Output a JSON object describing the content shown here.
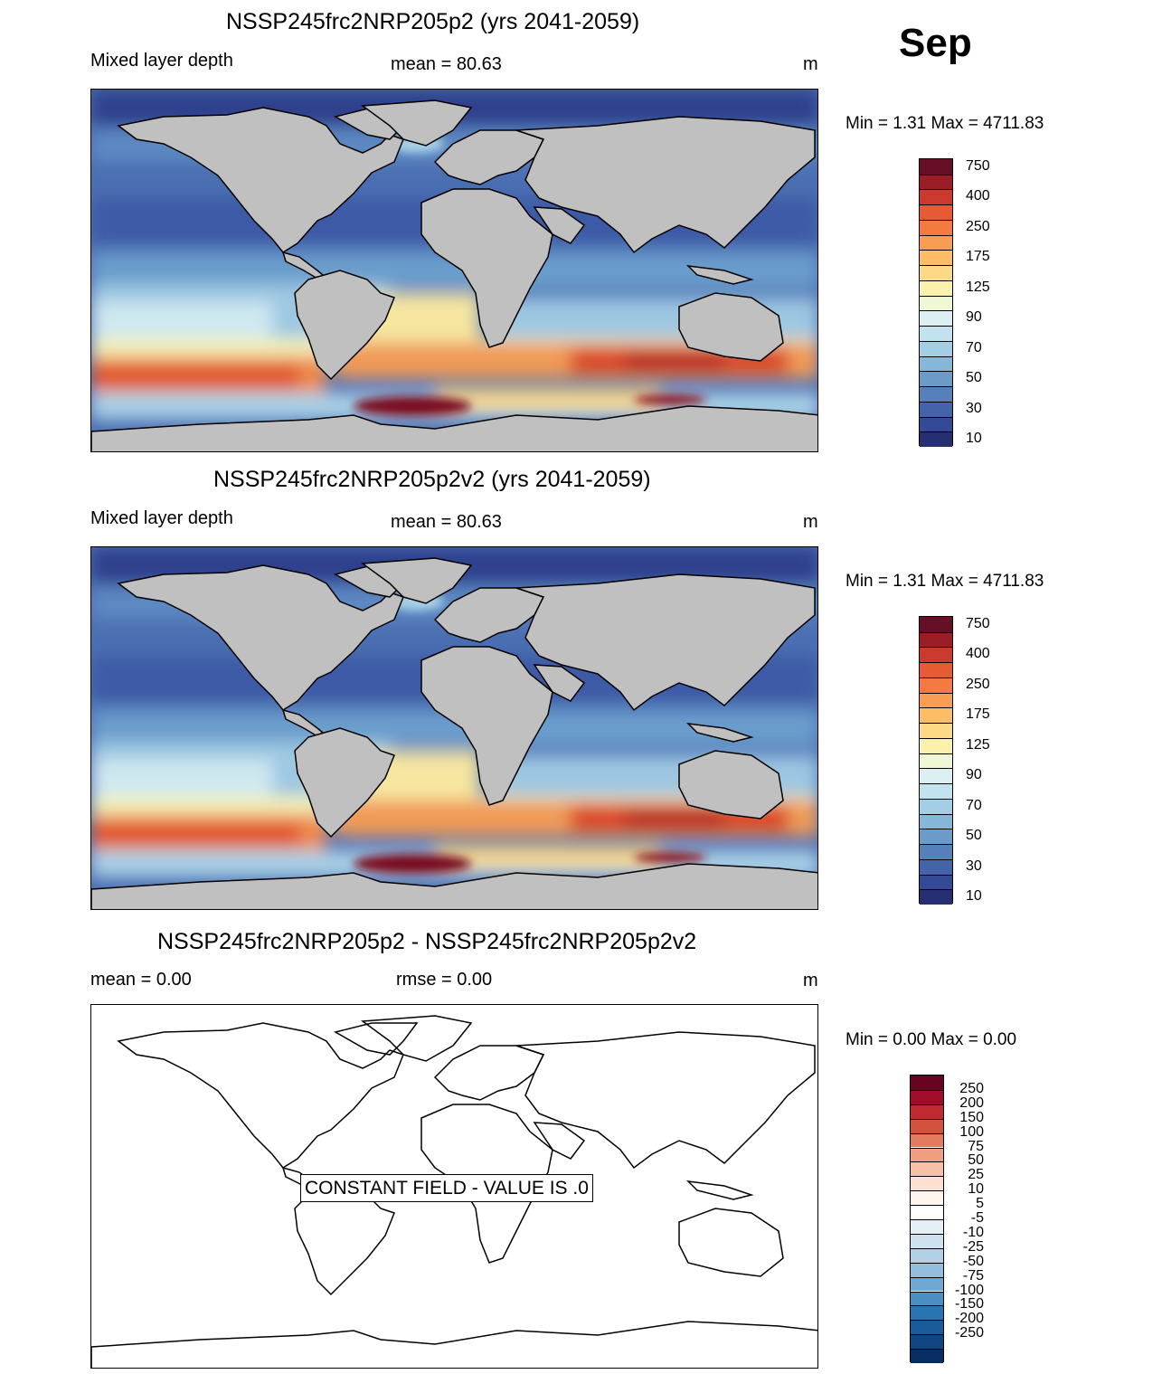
{
  "month": "Sep",
  "panels": [
    {
      "title": "NSSP245frc2NRP205p2 (yrs 2041-2059)",
      "left_label": "Mixed layer depth",
      "center_label": "mean =  80.63",
      "units": "m",
      "minmax": "Min =    1.31 Max = 4711.83"
    },
    {
      "title": "NSSP245frc2NRP205p2v2 (yrs 2041-2059)",
      "left_label": "Mixed layer depth",
      "center_label": "mean =  80.63",
      "units": "m",
      "minmax": "Min =    1.31 Max = 4711.83"
    },
    {
      "title": "NSSP245frc2NRP205p2 - NSSP245frc2NRP205p2v2",
      "left_label": "mean =   0.00",
      "center_label": "rmse =   0.00",
      "units": "m",
      "minmax": "Min =   0.00 Max =    0.00",
      "overlay_text": "CONSTANT FIELD - VALUE IS .0"
    }
  ],
  "colorbar_main": {
    "colors": [
      "#670f27",
      "#9b1e26",
      "#cb3a2c",
      "#e65a34",
      "#f47a42",
      "#f99d52",
      "#fbbd66",
      "#fdd885",
      "#fcf0ad",
      "#eef8d4",
      "#dcf0f4",
      "#c1e2ee",
      "#a3cfe4",
      "#85b7d8",
      "#6a9bc9",
      "#5580bb",
      "#4464aa",
      "#344a97",
      "#272f73"
    ],
    "labels": [
      "750",
      "400",
      "250",
      "175",
      "125",
      "90",
      "70",
      "50",
      "30",
      "10"
    ]
  },
  "colorbar_diff": {
    "colors": [
      "#6a0222",
      "#a00d2a",
      "#c02b32",
      "#d4503f",
      "#e37a5f",
      "#ef9e81",
      "#f7c1a5",
      "#fde0cf",
      "#fff5ef",
      "#ffffff",
      "#e5f0f6",
      "#cde2ee",
      "#b0d1e6",
      "#91bfdd",
      "#6fa8d1",
      "#4a8fc3",
      "#2b74b2",
      "#1a5b9c",
      "#0f4583",
      "#082d65"
    ],
    "labels": [
      "250",
      "200",
      "150",
      "100",
      "75",
      "50",
      "25",
      "10",
      "5",
      "-5",
      "-10",
      "-25",
      "-50",
      "-75",
      "-100",
      "-150",
      "-200",
      "-250"
    ]
  }
}
